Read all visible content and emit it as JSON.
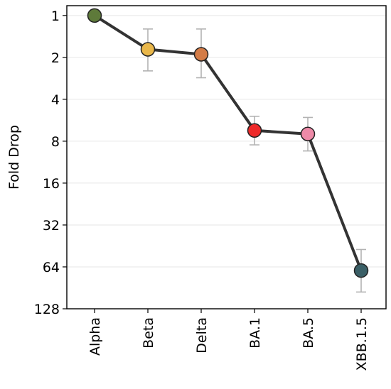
{
  "chart_data": {
    "type": "line",
    "title": "",
    "xlabel": "",
    "ylabel": "Fold Drop",
    "y_scale": "log2",
    "y_inverted": true,
    "ylim": [
      0.85,
      128
    ],
    "yticks": [
      1,
      2,
      4,
      8,
      16,
      32,
      64,
      128
    ],
    "ytick_labels": [
      "1",
      "2",
      "4",
      "8",
      "16",
      "32",
      "64",
      "128"
    ],
    "grid": "horizontal",
    "categories": [
      "Alpha",
      "Beta",
      "Delta",
      "BA.1",
      "BA.5",
      "XBB.1.5"
    ],
    "series": [
      {
        "line_color": "#333333",
        "values": [
          1.0,
          1.75,
          1.9,
          6.7,
          7.1,
          68
        ],
        "error_low": [
          1.0,
          1.25,
          1.25,
          5.3,
          5.4,
          48
        ],
        "error_high": [
          1.0,
          2.5,
          2.8,
          8.5,
          9.4,
          97
        ],
        "marker_colors": [
          "#5e7a3a",
          "#e9b74a",
          "#d47c47",
          "#ee2a2a",
          "#ee8aa8",
          "#3a5f66"
        ]
      }
    ]
  }
}
